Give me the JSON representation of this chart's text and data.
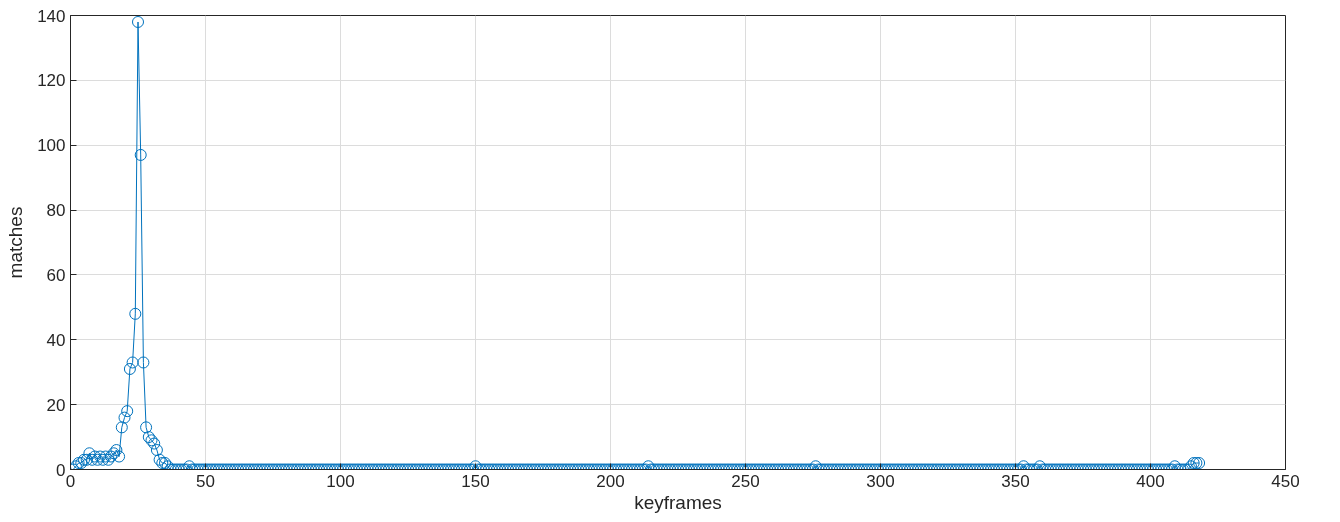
{
  "chart_data": {
    "type": "line",
    "xlabel": "keyframes",
    "ylabel": "matches",
    "x": [
      1,
      2,
      3,
      4,
      5,
      6,
      7,
      8,
      9,
      10,
      11,
      12,
      13,
      14,
      15,
      16,
      17,
      18,
      19,
      20,
      21,
      22,
      23,
      24,
      25,
      26,
      27,
      28,
      29,
      30,
      31,
      32,
      33,
      34,
      35,
      36,
      37,
      38,
      39,
      40,
      41,
      42,
      43,
      44,
      45,
      46,
      47,
      48,
      49,
      50,
      51,
      52,
      53,
      54,
      55,
      56,
      57,
      58,
      59,
      60,
      61,
      62,
      63,
      64,
      65,
      66,
      67,
      68,
      69,
      70,
      71,
      72,
      73,
      74,
      75,
      76,
      77,
      78,
      79,
      80,
      81,
      82,
      83,
      84,
      85,
      86,
      87,
      88,
      89,
      90,
      91,
      92,
      93,
      94,
      95,
      96,
      97,
      98,
      99,
      100,
      101,
      102,
      103,
      104,
      105,
      106,
      107,
      108,
      109,
      110,
      111,
      112,
      113,
      114,
      115,
      116,
      117,
      118,
      119,
      120,
      121,
      122,
      123,
      124,
      125,
      126,
      127,
      128,
      129,
      130,
      131,
      132,
      133,
      134,
      135,
      136,
      137,
      138,
      139,
      140,
      141,
      142,
      143,
      144,
      145,
      146,
      147,
      148,
      149,
      150,
      151,
      152,
      153,
      154,
      155,
      156,
      157,
      158,
      159,
      160,
      161,
      162,
      163,
      164,
      165,
      166,
      167,
      168,
      169,
      170,
      171,
      172,
      173,
      174,
      175,
      176,
      177,
      178,
      179,
      180,
      181,
      182,
      183,
      184,
      185,
      186,
      187,
      188,
      189,
      190,
      191,
      192,
      193,
      194,
      195,
      196,
      197,
      198,
      199,
      200,
      201,
      202,
      203,
      204,
      205,
      206,
      207,
      208,
      209,
      210,
      211,
      212,
      213,
      214,
      215,
      216,
      217,
      218,
      219,
      220,
      221,
      222,
      223,
      224,
      225,
      226,
      227,
      228,
      229,
      230,
      231,
      232,
      233,
      234,
      235,
      236,
      237,
      238,
      239,
      240,
      241,
      242,
      243,
      244,
      245,
      246,
      247,
      248,
      249,
      250,
      251,
      252,
      253,
      254,
      255,
      256,
      257,
      258,
      259,
      260,
      261,
      262,
      263,
      264,
      265,
      266,
      267,
      268,
      269,
      270,
      271,
      272,
      273,
      274,
      275,
      276,
      277,
      278,
      279,
      280,
      281,
      282,
      283,
      284,
      285,
      286,
      287,
      288,
      289,
      290,
      291,
      292,
      293,
      294,
      295,
      296,
      297,
      298,
      299,
      300,
      301,
      302,
      303,
      304,
      305,
      306,
      307,
      308,
      309,
      310,
      311,
      312,
      313,
      314,
      315,
      316,
      317,
      318,
      319,
      320,
      321,
      322,
      323,
      324,
      325,
      326,
      327,
      328,
      329,
      330,
      331,
      332,
      333,
      334,
      335,
      336,
      337,
      338,
      339,
      340,
      341,
      342,
      343,
      344,
      345,
      346,
      347,
      348,
      349,
      350,
      351,
      352,
      353,
      354,
      355,
      356,
      357,
      358,
      359,
      360,
      361,
      362,
      363,
      364,
      365,
      366,
      367,
      368,
      369,
      370,
      371,
      372,
      373,
      374,
      375,
      376,
      377,
      378,
      379,
      380,
      381,
      382,
      383,
      384,
      385,
      386,
      387,
      388,
      389,
      390,
      391,
      392,
      393,
      394,
      395,
      396,
      397,
      398,
      399,
      400,
      401,
      402,
      403,
      404,
      405,
      406,
      407,
      408,
      409,
      410,
      411,
      412,
      413,
      414,
      415,
      416,
      417,
      418
    ],
    "series": [
      {
        "color": "#0072bd",
        "values": [
          0,
          1,
          2,
          2,
          3,
          3,
          5,
          3,
          4,
          3,
          4,
          3,
          4,
          3,
          4,
          5,
          6,
          4,
          13,
          16,
          18,
          31,
          33,
          48,
          138,
          97,
          33,
          13,
          10,
          9,
          8,
          6,
          3,
          2,
          2,
          1,
          0,
          0,
          0,
          0,
          0,
          0,
          0,
          1,
          0,
          0,
          0,
          0,
          0,
          0,
          0,
          0,
          0,
          0,
          0,
          0,
          0,
          0,
          0,
          0,
          0,
          0,
          0,
          0,
          0,
          0,
          0,
          0,
          0,
          0,
          0,
          0,
          0,
          0,
          0,
          0,
          0,
          0,
          0,
          0,
          0,
          0,
          0,
          0,
          0,
          0,
          0,
          0,
          0,
          0,
          0,
          0,
          0,
          0,
          0,
          0,
          0,
          0,
          0,
          0,
          0,
          0,
          0,
          0,
          0,
          0,
          0,
          0,
          0,
          0,
          0,
          0,
          0,
          0,
          0,
          0,
          0,
          0,
          0,
          0,
          0,
          0,
          0,
          0,
          0,
          0,
          0,
          0,
          0,
          0,
          0,
          0,
          0,
          0,
          0,
          0,
          0,
          0,
          0,
          0,
          0,
          0,
          0,
          0,
          0,
          0,
          0,
          0,
          0,
          1,
          0,
          0,
          0,
          0,
          0,
          0,
          0,
          0,
          0,
          0,
          0,
          0,
          0,
          0,
          0,
          0,
          0,
          0,
          0,
          0,
          0,
          0,
          0,
          0,
          0,
          0,
          0,
          0,
          0,
          0,
          0,
          0,
          0,
          0,
          0,
          0,
          0,
          0,
          0,
          0,
          0,
          0,
          0,
          0,
          0,
          0,
          0,
          0,
          0,
          0,
          0,
          0,
          0,
          0,
          0,
          0,
          0,
          0,
          0,
          0,
          0,
          0,
          0,
          1,
          0,
          0,
          0,
          0,
          0,
          0,
          0,
          0,
          0,
          0,
          0,
          0,
          0,
          0,
          0,
          0,
          0,
          0,
          0,
          0,
          0,
          0,
          0,
          0,
          0,
          0,
          0,
          0,
          0,
          0,
          0,
          0,
          0,
          0,
          0,
          0,
          0,
          0,
          0,
          0,
          0,
          0,
          0,
          0,
          0,
          0,
          0,
          0,
          0,
          0,
          0,
          0,
          0,
          0,
          0,
          0,
          0,
          0,
          0,
          0,
          0,
          1,
          0,
          0,
          0,
          0,
          0,
          0,
          0,
          0,
          0,
          0,
          0,
          0,
          0,
          0,
          0,
          0,
          0,
          0,
          0,
          0,
          0,
          0,
          0,
          0,
          0,
          0,
          0,
          0,
          0,
          0,
          0,
          0,
          0,
          0,
          0,
          0,
          0,
          0,
          0,
          0,
          0,
          0,
          0,
          0,
          0,
          0,
          0,
          0,
          0,
          0,
          0,
          0,
          0,
          0,
          0,
          0,
          0,
          0,
          0,
          0,
          0,
          0,
          0,
          0,
          0,
          0,
          0,
          0,
          0,
          0,
          0,
          0,
          0,
          0,
          0,
          0,
          1,
          0,
          0,
          0,
          0,
          0,
          1,
          0,
          0,
          0,
          0,
          0,
          0,
          0,
          0,
          0,
          0,
          0,
          0,
          0,
          0,
          0,
          0,
          0,
          0,
          0,
          0,
          0,
          0,
          0,
          0,
          0,
          0,
          0,
          0,
          0,
          0,
          0,
          0,
          0,
          0,
          0,
          0,
          0,
          0,
          0,
          0,
          0,
          0,
          0,
          0,
          0,
          0,
          0,
          0,
          0,
          1,
          0,
          0,
          0,
          0,
          0,
          1,
          2,
          2,
          2
        ]
      }
    ],
    "xlim": [
      0,
      450
    ],
    "ylim": [
      0,
      140
    ],
    "xticks": [
      0,
      50,
      100,
      150,
      200,
      250,
      300,
      350,
      400,
      450
    ],
    "yticks": [
      0,
      20,
      40,
      60,
      80,
      100,
      120,
      140
    ],
    "grid": true,
    "marker": "circle",
    "line_style": "solid"
  }
}
